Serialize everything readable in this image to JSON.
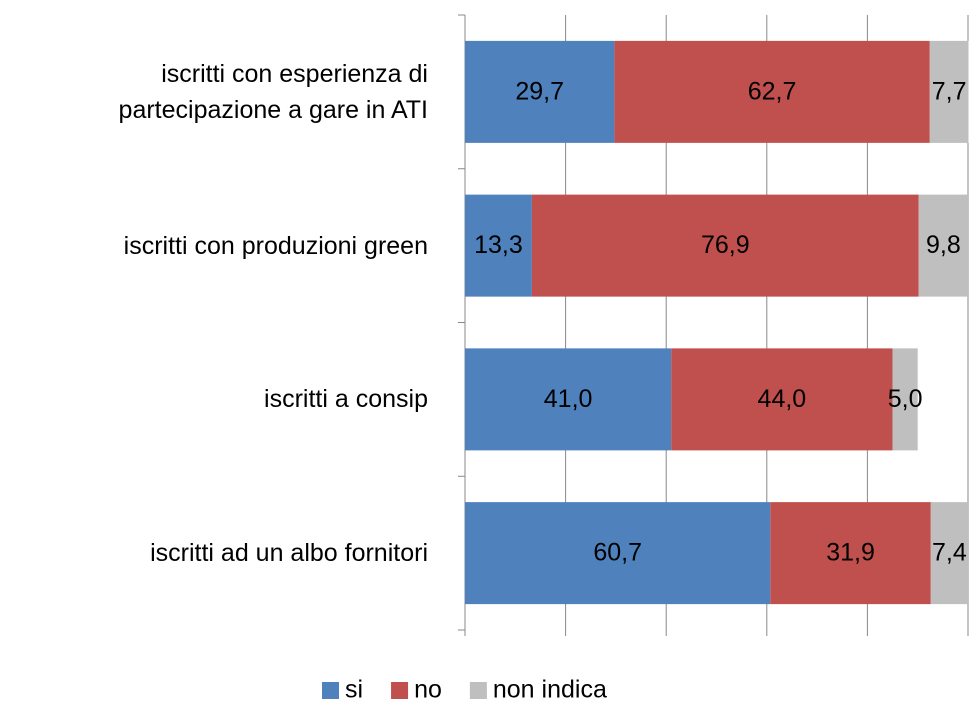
{
  "chart_data": {
    "type": "stacked_bar_horizontal",
    "categories": [
      "iscritti con esperienza di partecipazione a gare in ATI",
      "iscritti con produzioni green",
      "iscritti a consip",
      "iscritti ad un albo fornitori"
    ],
    "series": [
      {
        "name": "si",
        "color": "#4f81bd",
        "values": [
          29.7,
          13.3,
          41.0,
          60.7
        ],
        "value_labels": [
          "29,7",
          "13,3",
          "41,0",
          "60,7"
        ]
      },
      {
        "name": "no",
        "color": "#c0504d",
        "values": [
          62.7,
          76.9,
          44.0,
          31.9
        ],
        "value_labels": [
          "62,7",
          "76,9",
          "44,0",
          "31,9"
        ]
      },
      {
        "name": "non indica",
        "color": "#bfbfbf",
        "values": [
          7.7,
          9.8,
          5.0,
          7.4
        ],
        "value_labels": [
          "7,7",
          "9,8",
          "5,0",
          "7,4"
        ]
      }
    ],
    "xlim": [
      0,
      100
    ],
    "xticks": [
      0,
      20,
      40,
      60,
      80,
      100
    ],
    "grid": true,
    "legend": "bottom"
  }
}
